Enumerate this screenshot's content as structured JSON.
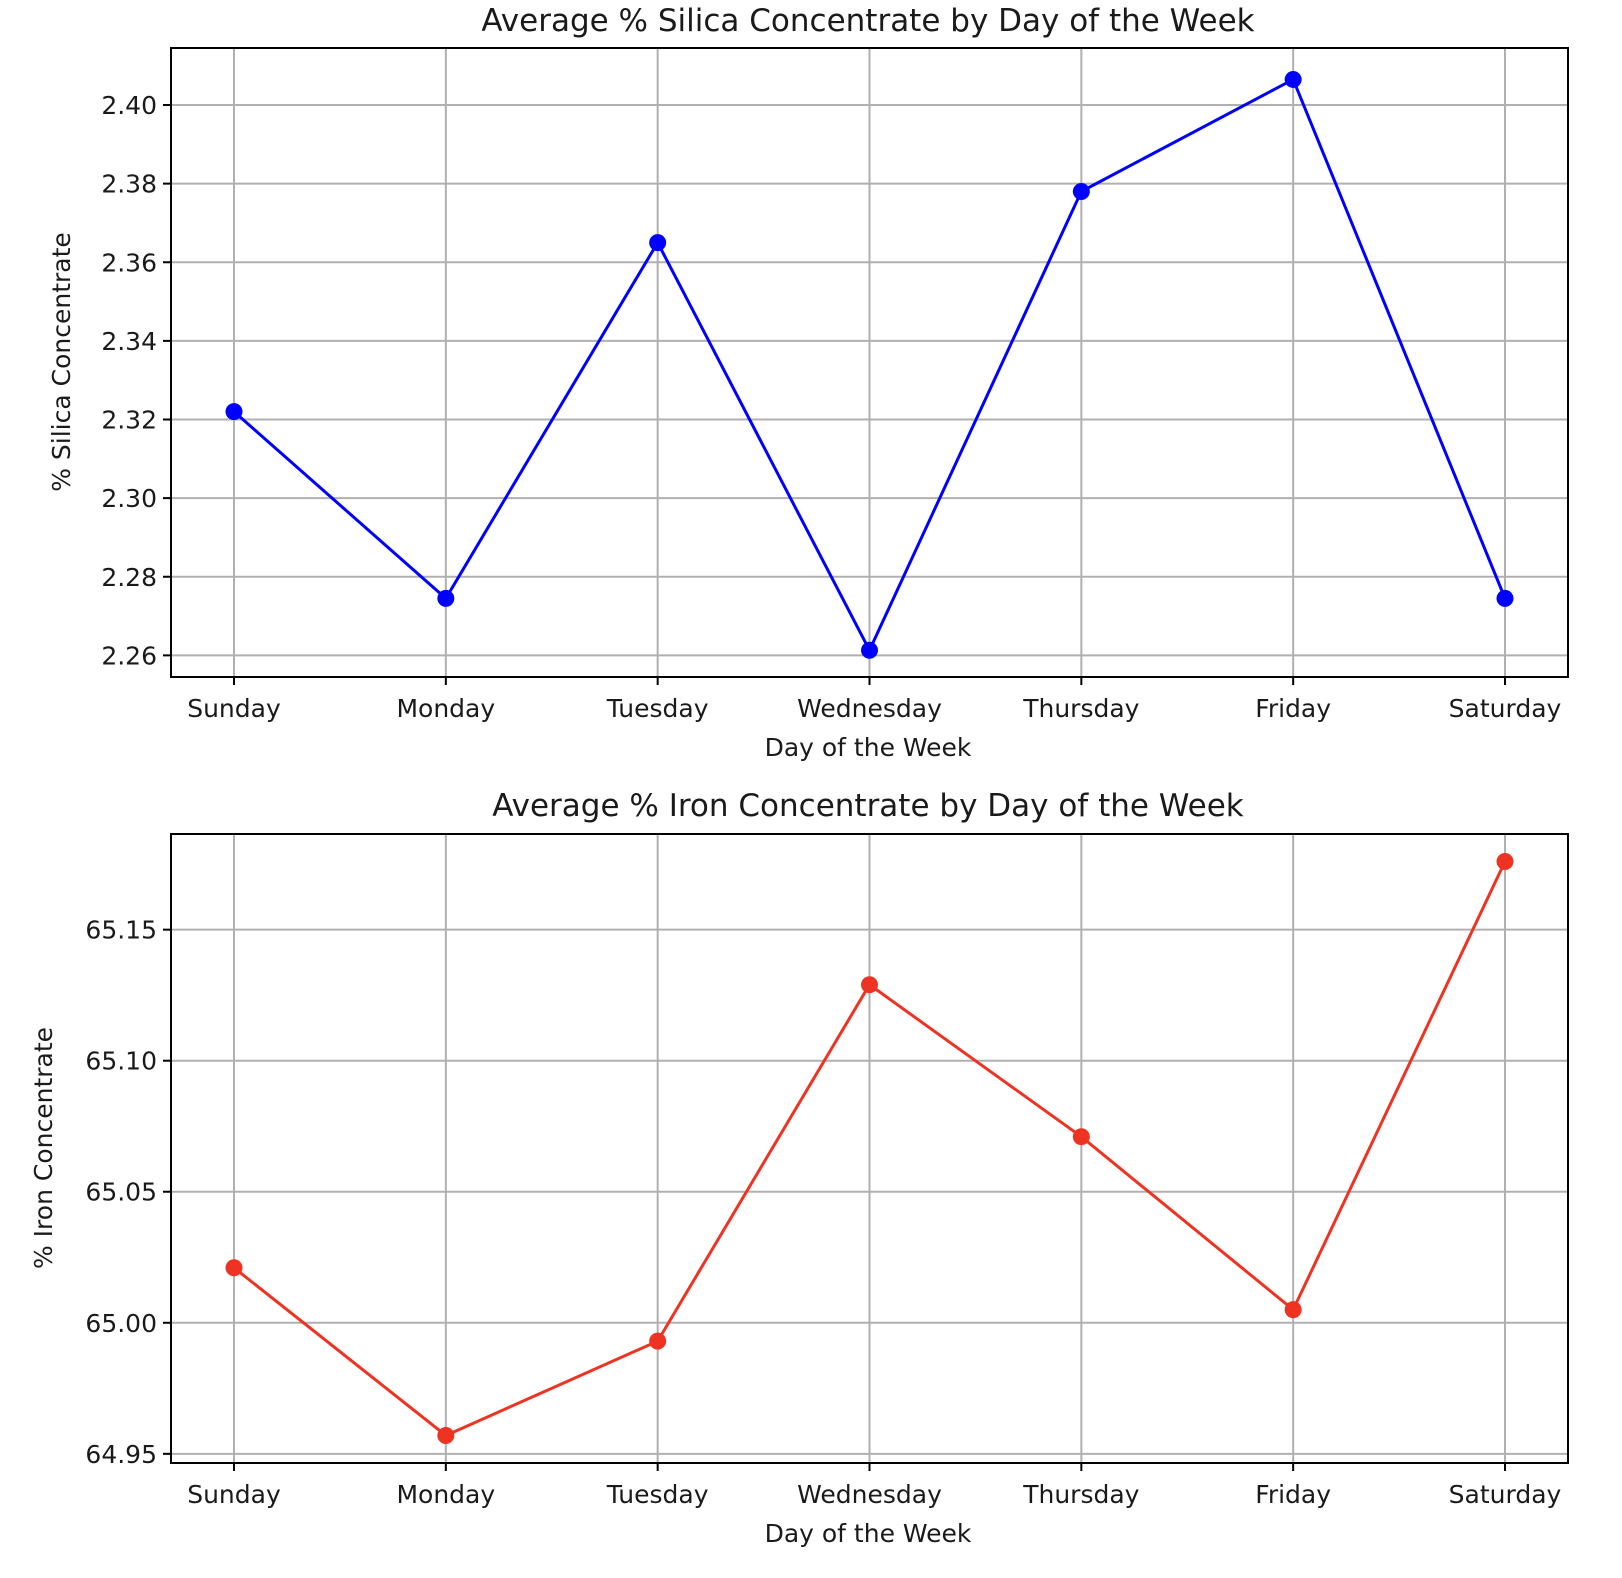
{
  "chart_data": [
    {
      "type": "line",
      "title": "Average % Silica Concentrate by Day of the Week",
      "xlabel": "Day of the Week",
      "ylabel": "% Silica Concentrate",
      "categories": [
        "Sunday",
        "Monday",
        "Tuesday",
        "Wednesday",
        "Thursday",
        "Friday",
        "Saturday"
      ],
      "series": [
        {
          "values": [
            2.322,
            2.2745,
            2.365,
            2.2613,
            2.378,
            2.4065,
            2.2745
          ],
          "color": "#0000ff"
        }
      ],
      "ylim": [
        2.2545,
        2.4145
      ],
      "yticks": [
        "2.26",
        "2.28",
        "2.30",
        "2.32",
        "2.34",
        "2.36",
        "2.38",
        "2.40"
      ],
      "grid": true,
      "marker": "circle"
    },
    {
      "type": "line",
      "title": "Average % Iron Concentrate by Day of the Week",
      "xlabel": "Day of the Week",
      "ylabel": "% Iron Concentrate",
      "categories": [
        "Sunday",
        "Monday",
        "Tuesday",
        "Wednesday",
        "Thursday",
        "Friday",
        "Saturday"
      ],
      "series": [
        {
          "values": [
            65.021,
            64.957,
            64.993,
            65.129,
            65.071,
            65.005,
            65.176
          ],
          "color": "#ee3322"
        }
      ],
      "ylim": [
        64.9465,
        65.1865
      ],
      "yticks": [
        "64.95",
        "65.00",
        "65.05",
        "65.10",
        "65.15"
      ],
      "grid": true,
      "marker": "circle"
    }
  ]
}
